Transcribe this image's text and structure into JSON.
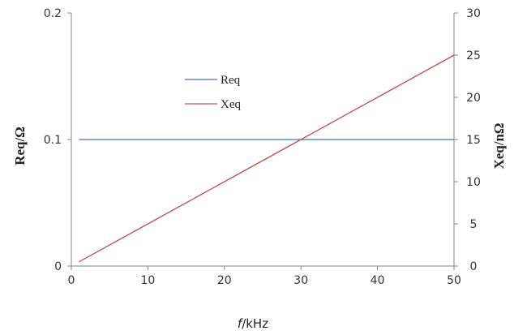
{
  "chart_data": {
    "type": "line",
    "xlabel_italic": "f",
    "xlabel_unit": "/kHz",
    "ylabel_left": "Req/Ω",
    "ylabel_right": "Xeq/nΩ",
    "xlim": [
      0,
      50
    ],
    "ylim_left": [
      0,
      0.2
    ],
    "ylim_right": [
      0,
      30
    ],
    "x_ticks": [
      "0",
      "10",
      "20",
      "30",
      "40",
      "50"
    ],
    "y_left_ticks": [
      "0",
      "0.1",
      "0.2"
    ],
    "y_right_ticks": [
      "0",
      "5",
      "10",
      "15",
      "20",
      "25",
      "30"
    ],
    "grid": false,
    "legend_position": "upper-left-inside",
    "series": [
      {
        "name": "Req",
        "axis": "left",
        "color": "#4472c4",
        "x": [
          1,
          50
        ],
        "y": [
          0.1,
          0.1
        ]
      },
      {
        "name": "Xeq",
        "axis": "right",
        "color": "#c0504d",
        "x": [
          1,
          10,
          20,
          30,
          40,
          50
        ],
        "y": [
          0.5,
          5,
          10,
          15,
          20,
          25
        ]
      }
    ]
  }
}
